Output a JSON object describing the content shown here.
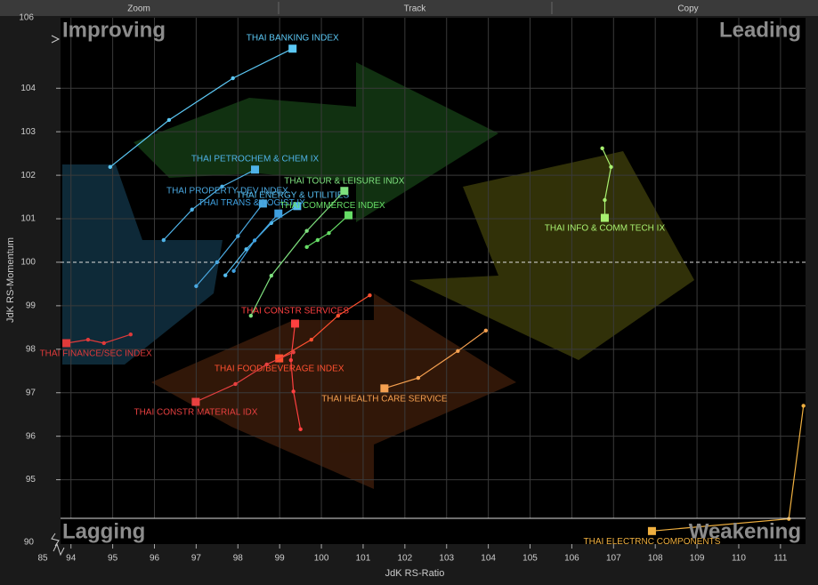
{
  "toolbar": [
    "Zoom",
    "Track",
    "Copy"
  ],
  "chart_data": {
    "type": "scatter",
    "x_label": "JdK RS-Ratio",
    "y_label": "JdK RS-Momentum",
    "quadrant_labels": {
      "top_left": "Improving",
      "top_right": "Leading",
      "bottom_left": "Lagging",
      "bottom_right": "Weakening"
    },
    "x_break_label": "85",
    "y_break_labels": [
      "106",
      "90"
    ],
    "xlim": [
      93.75,
      111.6
    ],
    "ylim": [
      93.52,
      105.62
    ],
    "xticks": [
      94,
      95,
      96,
      97,
      98,
      99,
      100,
      101,
      102,
      103,
      104,
      105,
      106,
      107,
      108,
      109,
      110,
      111
    ],
    "yticks": [
      95,
      96,
      97,
      98,
      99,
      100,
      101,
      102,
      103,
      104
    ],
    "grid": true,
    "series": [
      {
        "name": "THAI BANKING INDEX",
        "color": "#5cc8f5",
        "x": [
          94.94,
          96.35,
          97.88,
          99.31
        ],
        "y": [
          102.19,
          103.27,
          104.23,
          104.91
        ]
      },
      {
        "name": "THAI PETROCHEM & CHEM IX",
        "color": "#4fb3e8",
        "x": [
          96.22,
          96.9,
          97.62,
          98.41
        ],
        "y": [
          100.51,
          101.21,
          101.74,
          102.13
        ]
      },
      {
        "name": "THAI PROPERTY DEV INDEX",
        "color": "#4aa8e0",
        "x": [
          97.0,
          97.5,
          98.0,
          98.6
        ],
        "y": [
          99.45,
          100.0,
          100.6,
          101.35
        ]
      },
      {
        "name": "THAI ENERGY & UTILITIES",
        "color": "#55bdf0",
        "x": [
          97.7,
          98.2,
          98.8,
          99.42
        ],
        "y": [
          99.7,
          100.3,
          100.9,
          101.29
        ]
      },
      {
        "name": "THAI TRANS & LOGIST IX",
        "color": "#3fa0e0",
        "x": [
          97.9,
          98.4,
          98.97
        ],
        "y": [
          99.8,
          100.5,
          101.12
        ]
      },
      {
        "name": "THAI TOUR & LEISURE INDX",
        "color": "#7ee07e",
        "x": [
          98.31,
          98.8,
          99.65,
          100.55
        ],
        "y": [
          98.77,
          99.69,
          100.72,
          101.64
        ]
      },
      {
        "name": "THAI COMMERCE INDEX",
        "color": "#66dd66",
        "x": [
          99.65,
          99.91,
          100.18,
          100.65
        ],
        "y": [
          100.35,
          100.51,
          100.67,
          101.08
        ]
      },
      {
        "name": "THAI INFO & COMM TECH IX",
        "color": "#a8f070",
        "x": [
          106.73,
          106.94,
          106.79,
          106.79
        ],
        "y": [
          102.62,
          102.19,
          101.43,
          101.02
        ]
      },
      {
        "name": "THAI FINANCE/SEC INDEX",
        "color": "#e03a3a",
        "x": [
          95.43,
          94.79,
          94.41,
          93.89
        ],
        "y": [
          98.34,
          98.14,
          98.22,
          98.14
        ]
      },
      {
        "name": "THAI CONSTR SERVICES",
        "color": "#ff4040",
        "x": [
          99.5,
          99.33,
          99.27,
          99.37
        ],
        "y": [
          96.16,
          97.03,
          97.75,
          98.59
        ]
      },
      {
        "name": "THAI FOOD/BEVERAGE INDEX",
        "color": "#ff5030",
        "x": [
          101.16,
          100.4,
          99.76,
          98.99
        ],
        "y": [
          99.24,
          98.77,
          98.22,
          97.79
        ]
      },
      {
        "name": "THAI CONSTR MATERIAL IDX",
        "color": "#e84040",
        "x": [
          99.33,
          98.69,
          97.94,
          96.99
        ],
        "y": [
          97.93,
          97.65,
          97.2,
          96.79
        ]
      },
      {
        "name": "THAI HEALTH CARE SERVICE",
        "color": "#f5a050",
        "x": [
          103.94,
          103.27,
          102.32,
          101.51
        ],
        "y": [
          98.43,
          97.96,
          97.34,
          97.1
        ]
      },
      {
        "name": "THAI ELECTRNC COMPONENTS",
        "color": "#f0b040",
        "x": [
          111.55,
          111.2,
          107.92
        ],
        "y": [
          96.7,
          94.1,
          93.82
        ]
      }
    ]
  }
}
